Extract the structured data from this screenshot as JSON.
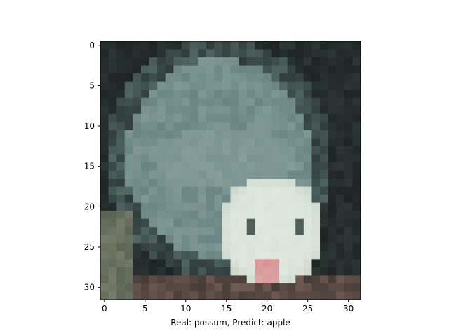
{
  "figure": {
    "xlabel": "Real: possum, Predict: apple",
    "xticks": [
      "0",
      "5",
      "10",
      "15",
      "20",
      "25",
      "30"
    ],
    "yticks": [
      "0",
      "5",
      "10",
      "15",
      "20",
      "25",
      "30"
    ],
    "image_grid": {
      "rows": 32,
      "cols": 32
    },
    "subject": "possum-face-pixelated",
    "colors": {
      "fur_dark": "#2f3b3a",
      "fur_mid": "#5f7b79",
      "fur_light": "#8aa2a0",
      "face_white": "#dfe8dc",
      "nose_pink": "#d98f93",
      "background_dark": "#1f2424"
    }
  }
}
